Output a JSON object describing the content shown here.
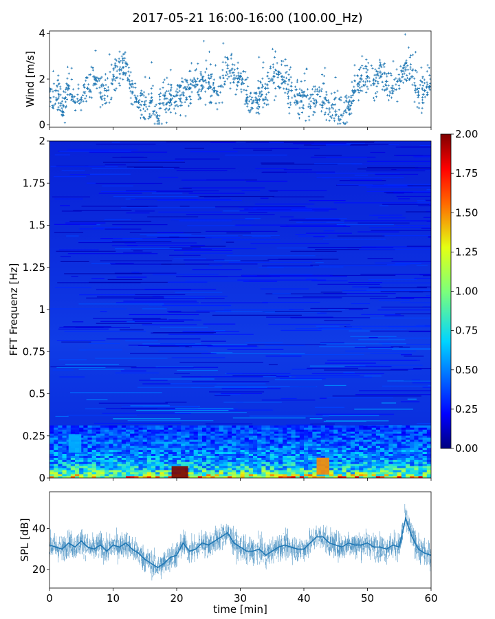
{
  "chart_data": {
    "title": "2017-05-21 16:00-16:00 (100.00_Hz)",
    "shared_x": {
      "label": "time [min]",
      "range": [
        0,
        60
      ],
      "ticks": [
        "0",
        "10",
        "20",
        "30",
        "40",
        "50",
        "60"
      ]
    },
    "panels": [
      {
        "type": "scatter",
        "ylabel": "Wind [m/s]",
        "ylim": [
          -0.1,
          4.1
        ],
        "yticks": [
          "0",
          "2",
          "4"
        ],
        "marker": "+",
        "color": "#1f77b4",
        "series": [
          {
            "x": [
              0,
              1,
              2,
              3,
              4,
              5,
              6,
              7,
              8,
              9,
              10,
              11,
              12,
              13,
              14,
              15,
              16,
              17,
              18,
              19,
              20,
              21,
              22,
              23,
              24,
              25,
              26,
              27,
              28,
              29,
              30,
              31,
              32,
              33,
              34,
              35,
              36,
              37,
              38,
              39,
              40,
              41,
              42,
              43,
              44,
              45,
              46,
              47,
              48,
              49,
              50,
              51,
              52,
              53,
              54,
              55,
              56,
              57,
              58,
              59,
              60
            ],
            "y": [
              1.2,
              1.5,
              0.6,
              1.7,
              1.0,
              1.1,
              1.6,
              2.1,
              1.4,
              1.5,
              2.0,
              2.4,
              2.7,
              1.4,
              1.0,
              0.9,
              1.0,
              0.4,
              1.3,
              1.1,
              1.3,
              1.4,
              1.6,
              1.9,
              1.7,
              1.6,
              1.5,
              1.7,
              2.6,
              2.0,
              2.1,
              1.1,
              1.0,
              1.1,
              1.6,
              2.0,
              2.2,
              1.9,
              1.5,
              1.0,
              1.3,
              0.8,
              1.0,
              1.0,
              0.7,
              0.6,
              0.4,
              0.7,
              1.5,
              2.0,
              2.1,
              1.8,
              2.3,
              1.9,
              1.6,
              2.0,
              2.4,
              2.1,
              1.3,
              1.5,
              2.0
            ]
          }
        ]
      },
      {
        "type": "heatmap",
        "ylabel": "FFT Frequenz [Hz]",
        "ylim": [
          0,
          2
        ],
        "yticks": [
          "0",
          "0.25",
          "0.5",
          "0.75",
          "1",
          "1.25",
          "1.5",
          "1.75",
          "2"
        ],
        "colormap": "jet",
        "clim": [
          0,
          2
        ],
        "colorbar_ticks": [
          "0.00",
          "0.25",
          "0.50",
          "0.75",
          "1.00",
          "1.25",
          "1.50",
          "1.75",
          "2.00"
        ],
        "freq_profile": {
          "freq": [
            0,
            0.02,
            0.05,
            0.1,
            0.2,
            0.3,
            0.5,
            0.75,
            1.0,
            1.5,
            2.0
          ],
          "mean_value": [
            1.25,
            0.95,
            0.7,
            0.55,
            0.42,
            0.35,
            0.28,
            0.24,
            0.21,
            0.19,
            0.17
          ]
        },
        "hot_spots": [
          {
            "time": [
              19.2,
              21.8
            ],
            "freq": [
              0,
              0.07
            ],
            "value": 2.0
          },
          {
            "time": [
              42.0,
              44.0
            ],
            "freq": [
              0.02,
              0.12
            ],
            "value": 1.5
          },
          {
            "time": [
              3.0,
              5.0
            ],
            "freq": [
              0.15,
              0.26
            ],
            "value": 0.6
          }
        ]
      },
      {
        "type": "line",
        "ylabel": "SPL [dB]",
        "ylim": [
          11,
          58
        ],
        "yticks": [
          "20",
          "40"
        ],
        "color": "#1f77b4",
        "series": [
          {
            "x": [
              0,
              1,
              2,
              3,
              4,
              5,
              6,
              7,
              8,
              9,
              10,
              11,
              12,
              13,
              14,
              15,
              16,
              17,
              18,
              19,
              20,
              21,
              22,
              23,
              24,
              25,
              26,
              27,
              28,
              29,
              30,
              31,
              32,
              33,
              34,
              35,
              36,
              37,
              38,
              39,
              40,
              41,
              42,
              43,
              44,
              45,
              46,
              47,
              48,
              49,
              50,
              51,
              52,
              53,
              54,
              55,
              56,
              57,
              58,
              59,
              60
            ],
            "y": [
              32,
              31,
              30,
              33,
              31,
              34,
              31,
              30,
              32,
              29,
              32,
              31,
              33,
              30,
              28,
              25,
              23,
              21,
              23,
              26,
              27,
              33,
              29,
              30,
              33,
              32,
              34,
              36,
              38,
              33,
              31,
              29,
              29,
              30,
              27,
              29,
              31,
              32,
              31,
              30,
              30,
              33,
              36,
              36,
              33,
              32,
              31,
              33,
              32,
              32,
              33,
              31,
              31,
              30,
              32,
              31,
              45,
              36,
              30,
              28,
              27
            ]
          }
        ]
      }
    ]
  }
}
